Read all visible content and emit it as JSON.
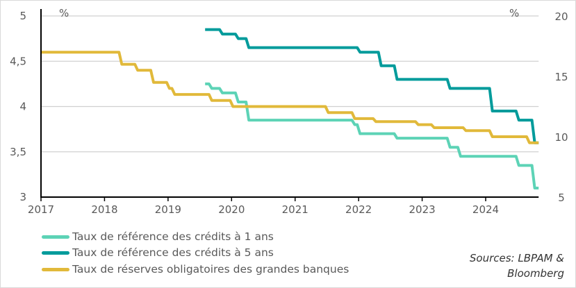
{
  "chart_data": {
    "type": "line",
    "step": true,
    "x_ticks": [
      "2017",
      "2018",
      "2019",
      "2020",
      "2021",
      "2022",
      "2023",
      "2024"
    ],
    "xlim": [
      "2017-01",
      "2024-11"
    ],
    "y_left": {
      "unit": "%",
      "ylim": [
        3,
        5
      ],
      "ticks": [
        "5",
        "4,5",
        "4",
        "3,5",
        "3"
      ],
      "tick_values": [
        5,
        4.5,
        4,
        3.5,
        3
      ]
    },
    "y_right": {
      "unit": "%",
      "ylim": [
        5,
        20
      ],
      "ticks": [
        "20",
        "15",
        "10",
        "5"
      ],
      "tick_values": [
        20,
        15,
        10,
        5
      ]
    },
    "grid": true,
    "legend_position": "bottom-left",
    "series": [
      {
        "name": "Taux de référence des crédits à 1 ans",
        "axis": "left",
        "color": "#5DD3B6",
        "points": [
          [
            "2019-08",
            4.25
          ],
          [
            "2019-09",
            4.2
          ],
          [
            "2019-11",
            4.15
          ],
          [
            "2020-02",
            4.05
          ],
          [
            "2020-04",
            3.85
          ],
          [
            "2021-12",
            3.8
          ],
          [
            "2022-01",
            3.7
          ],
          [
            "2022-08",
            3.65
          ],
          [
            "2023-06",
            3.55
          ],
          [
            "2023-08",
            3.45
          ],
          [
            "2024-07",
            3.35
          ],
          [
            "2024-10",
            3.1
          ]
        ]
      },
      {
        "name": "Taux de référence des crédits à 5 ans",
        "axis": "left",
        "color": "#009B9B",
        "points": [
          [
            "2019-08",
            4.85
          ],
          [
            "2019-11",
            4.8
          ],
          [
            "2020-02",
            4.75
          ],
          [
            "2020-04",
            4.65
          ],
          [
            "2022-01",
            4.6
          ],
          [
            "2022-05",
            4.45
          ],
          [
            "2022-08",
            4.3
          ],
          [
            "2023-06",
            4.2
          ],
          [
            "2024-02",
            3.95
          ],
          [
            "2024-07",
            3.85
          ],
          [
            "2024-10",
            3.6
          ]
        ]
      },
      {
        "name": "Taux de réserves obligatoires des grandes banques",
        "axis": "right",
        "color": "#E1B93A",
        "points": [
          [
            "2017-01",
            17
          ],
          [
            "2018-04",
            16
          ],
          [
            "2018-07",
            15.5
          ],
          [
            "2018-10",
            14.5
          ],
          [
            "2019-01",
            14
          ],
          [
            "2019-02",
            13.5
          ],
          [
            "2019-09",
            13
          ],
          [
            "2020-01",
            12.5
          ],
          [
            "2021-07",
            12
          ],
          [
            "2021-12",
            11.5
          ],
          [
            "2022-04",
            11.25
          ],
          [
            "2022-12",
            11
          ],
          [
            "2023-03",
            10.75
          ],
          [
            "2023-09",
            10.5
          ],
          [
            "2024-02",
            10
          ],
          [
            "2024-09",
            9.5
          ]
        ]
      }
    ]
  },
  "sources": {
    "line1": "Sources: LBPAM &",
    "line2": "Bloomberg"
  }
}
